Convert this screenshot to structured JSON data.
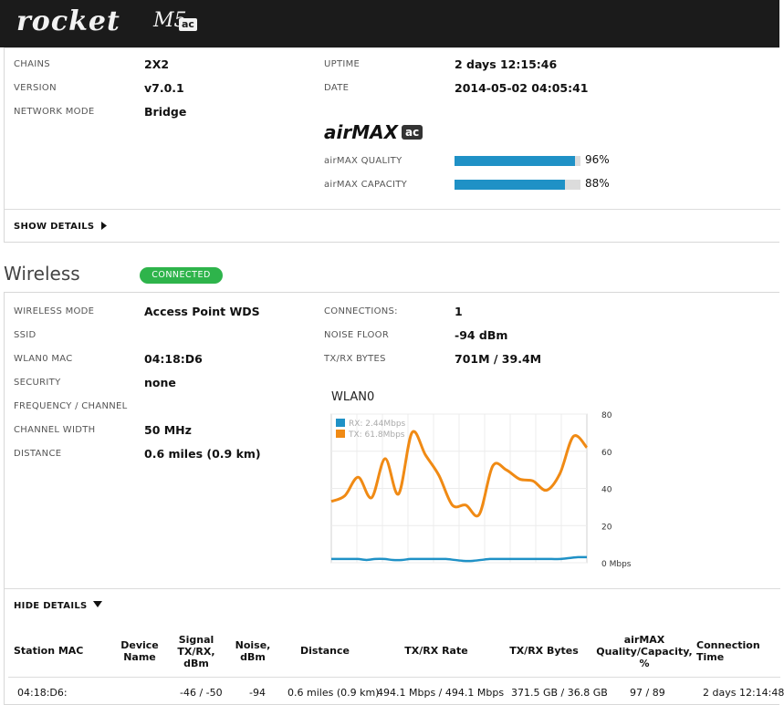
{
  "brand": {
    "word": "rocket",
    "model": "M5",
    "tag": "ac"
  },
  "status": {
    "chains": {
      "label": "CHAINS",
      "value": "2X2"
    },
    "version": {
      "label": "VERSION",
      "value": "v7.0.1"
    },
    "network_mode": {
      "label": "NETWORK MODE",
      "value": "Bridge"
    },
    "uptime": {
      "label": "UPTIME",
      "value": "2 days 12:15:46"
    },
    "date": {
      "label": "DATE",
      "value": "2014-05-02 04:05:41"
    },
    "airmax_logo": {
      "word": "airMAX",
      "tag": "ac"
    },
    "airmax_quality": {
      "label": "airMAX QUALITY",
      "percent": 96,
      "text": "96%"
    },
    "airmax_capacity": {
      "label": "airMAX CAPACITY",
      "percent": 88,
      "text": "88%"
    },
    "show_details": "SHOW DETAILS"
  },
  "wireless": {
    "title": "Wireless",
    "badge": "CONNECTED",
    "badge_color": "#2eb44b",
    "left": [
      {
        "label": "WIRELESS MODE",
        "value": "Access Point WDS"
      },
      {
        "label": "SSID",
        "value": ""
      },
      {
        "label": "WLAN0 MAC",
        "value": "04:18:D6"
      },
      {
        "label": "SECURITY",
        "value": "none"
      },
      {
        "label": "FREQUENCY / CHANNEL",
        "value": ""
      },
      {
        "label": "CHANNEL WIDTH",
        "value": "50 MHz"
      },
      {
        "label": "DISTANCE",
        "value": "0.6 miles (0.9 km)"
      }
    ],
    "right": [
      {
        "label": "CONNECTIONS:",
        "value": "1"
      },
      {
        "label": "NOISE FLOOR",
        "value": "-94 dBm"
      },
      {
        "label": "TX/RX BYTES",
        "value": "701M / 39.4M"
      }
    ],
    "hide_details": "HIDE DETAILS"
  },
  "chart_data": {
    "type": "line",
    "title": "WLAN0",
    "ylim": [
      0,
      80
    ],
    "y_ticks": [
      "80",
      "60",
      "40",
      "20",
      "0 Mbps"
    ],
    "legend_position": "top-left",
    "series": [
      {
        "name": "RX: 2.44Mbps",
        "color": "#1f91c6",
        "values": [
          2,
          2,
          2,
          2,
          1.5,
          2,
          2,
          1.5,
          1.5,
          2,
          2,
          2,
          2,
          2,
          1.5,
          1,
          1,
          1.5,
          2,
          2,
          2,
          2,
          2,
          2,
          2,
          2,
          2,
          2.5,
          3,
          3
        ]
      },
      {
        "name": "TX: 61.8Mbps",
        "color": "#f08a14",
        "values": [
          33,
          36,
          46,
          35,
          56,
          37,
          70,
          58,
          47,
          31,
          31,
          26,
          52,
          50,
          45,
          44,
          39,
          48,
          68,
          62
        ]
      }
    ]
  },
  "stations": {
    "headers": [
      "Station MAC",
      "Device Name",
      "Signal TX/RX, dBm",
      "Noise, dBm",
      "Distance",
      "TX/RX Rate",
      "TX/RX Bytes",
      "airMAX Quality/Capacity, %",
      "Connection Time"
    ],
    "rows": [
      [
        "04:18:D6:",
        "",
        "-46 / -50",
        "-94",
        "0.6 miles (0.9 km)",
        "494.1 Mbps / 494.1 Mbps",
        "371.5 GB / 36.8 GB",
        "97 / 89",
        "2 days 12:14:48"
      ]
    ]
  }
}
